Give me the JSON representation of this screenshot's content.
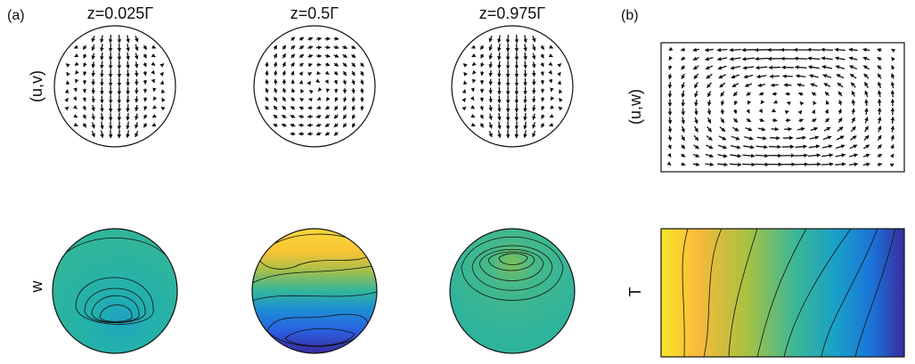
{
  "panel_a": {
    "label": "(a)",
    "columns": [
      "z=0.025Γ",
      "z=0.5Γ",
      "z=0.975Γ"
    ],
    "rows": [
      "(u,v)",
      "w"
    ]
  },
  "panel_b": {
    "label": "(b)",
    "rows": [
      "(u,w)",
      "T"
    ]
  }
}
